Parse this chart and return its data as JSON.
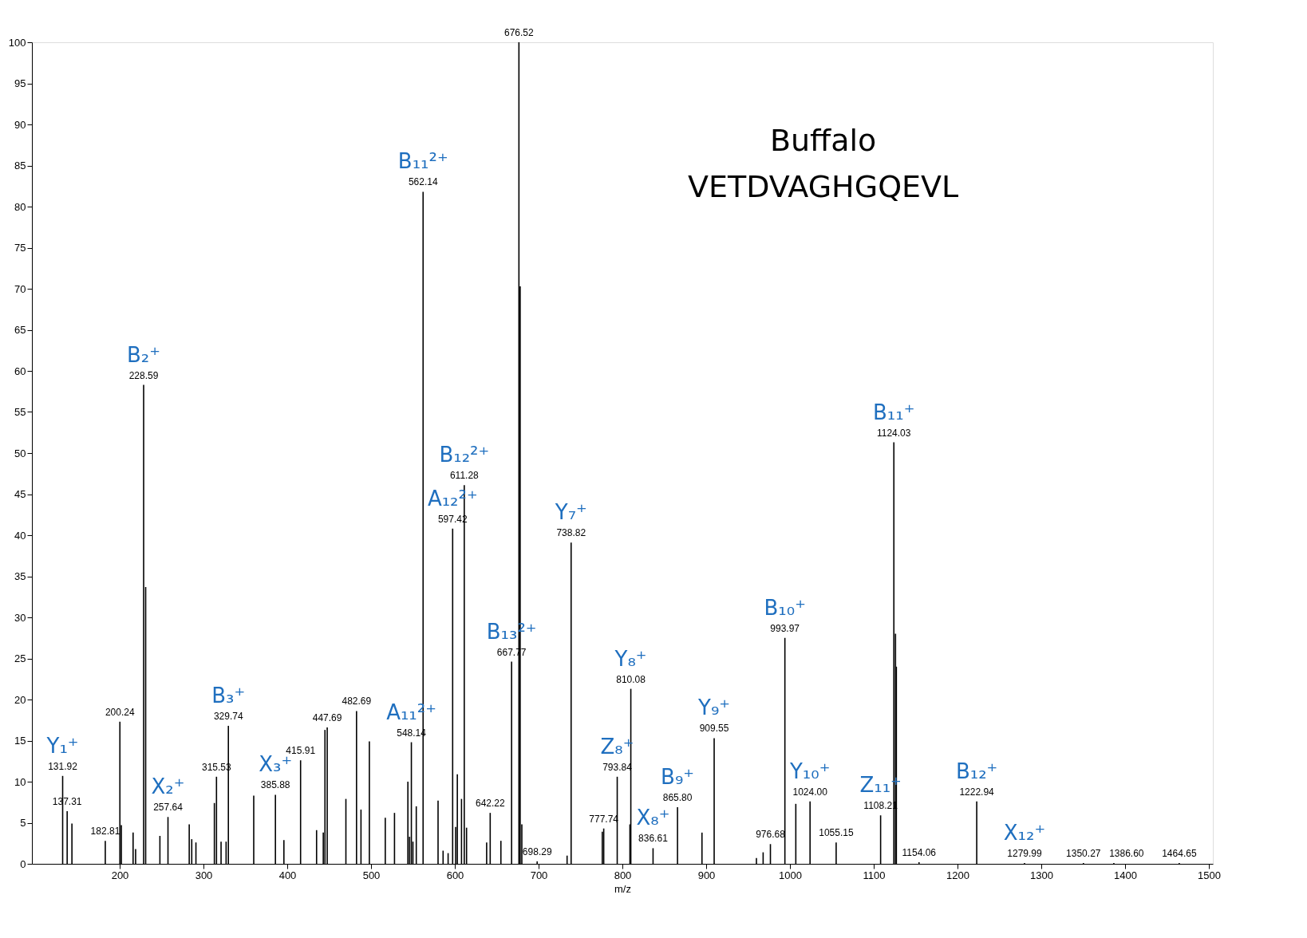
{
  "chart_data": {
    "type": "bar",
    "xlabel": "m/z",
    "x": [
      131.92,
      137.31,
      143,
      182.81,
      200.24,
      202,
      216,
      219,
      228.59,
      231,
      248,
      257.64,
      283,
      286,
      291,
      313,
      315.53,
      321,
      327,
      329.74,
      360,
      385.88,
      396,
      415.91,
      435,
      443,
      445,
      447.69,
      470,
      482.69,
      488,
      498,
      517,
      528,
      544,
      546,
      548.14,
      550,
      554,
      562.14,
      580,
      586,
      592,
      597.42,
      601,
      603,
      608,
      611.28,
      614,
      638,
      642.22,
      655,
      667.77,
      676.52,
      678,
      680,
      698.29,
      734,
      738.82,
      776,
      777.74,
      793.84,
      809,
      810.08,
      836.61,
      865.8,
      895,
      909.55,
      960,
      968,
      976.68,
      993.97,
      1007,
      1024.0,
      1055.15,
      1108.21,
      1124.03,
      1126,
      1127,
      1154.06,
      1222.94,
      1279.99,
      1350.27,
      1386.6,
      1464.65
    ],
    "values": [
      10.7,
      6.4,
      4.9,
      2.8,
      17.3,
      4.7,
      3.8,
      1.8,
      58.3,
      33.7,
      3.4,
      5.7,
      4.8,
      3.0,
      2.6,
      7.4,
      10.6,
      2.7,
      2.7,
      16.8,
      8.3,
      8.4,
      2.9,
      12.6,
      4.1,
      3.8,
      16.3,
      16.6,
      7.9,
      18.6,
      6.6,
      14.9,
      5.6,
      6.2,
      10.0,
      3.3,
      14.8,
      2.7,
      7.0,
      81.8,
      7.7,
      1.6,
      1.3,
      40.8,
      4.5,
      10.9,
      7.9,
      46.1,
      4.4,
      2.6,
      6.2,
      2.8,
      24.6,
      100,
      70.3,
      4.8,
      0.3,
      1.0,
      39.1,
      3.9,
      4.3,
      10.6,
      4.8,
      21.3,
      1.9,
      6.9,
      3.8,
      15.3,
      0.7,
      1.4,
      2.4,
      27.5,
      7.3,
      7.6,
      2.6,
      5.9,
      51.3,
      28,
      24,
      0.2,
      7.6,
      0.1,
      0.1,
      0.1,
      0.1
    ],
    "color": "#000000",
    "xlim": [
      100,
      1500
    ],
    "xticks": [
      200,
      300,
      400,
      500,
      600,
      700,
      800,
      900,
      1000,
      1100,
      1200,
      1300,
      1400,
      1500
    ],
    "ylim": [
      0,
      100
    ],
    "yticks": [
      0,
      5,
      10,
      15,
      20,
      25,
      30,
      35,
      40,
      45,
      50,
      55,
      60,
      65,
      70,
      75,
      80,
      85,
      90,
      95,
      100
    ],
    "grid": false,
    "annotations": [
      "Buffalo",
      "VETDVAGHGQEVL",
      {
        "text": "131.92",
        "x": 131.92,
        "y": 10.7
      },
      {
        "text": "Y₁⁺",
        "x": 131.92,
        "y": 10.7
      },
      {
        "text": "137.31",
        "x": 137.31,
        "y": 6.4
      },
      {
        "text": "182.81",
        "x": 182.81,
        "y": 2.8
      },
      {
        "text": "200.24",
        "x": 200.24,
        "y": 17.3
      },
      {
        "text": "228.59",
        "x": 228.59,
        "y": 58.3
      },
      {
        "text": "B₂⁺",
        "x": 228.59,
        "y": 58.3
      },
      {
        "text": "257.64",
        "x": 257.64,
        "y": 5.7
      },
      {
        "text": "X₂⁺",
        "x": 257.64,
        "y": 5.7
      },
      {
        "text": "315.53",
        "x": 315.53,
        "y": 10.6
      },
      {
        "text": "329.74",
        "x": 329.74,
        "y": 16.8
      },
      {
        "text": "B₃⁺",
        "x": 329.74,
        "y": 16.8
      },
      {
        "text": "385.88",
        "x": 385.88,
        "y": 8.4
      },
      {
        "text": "X₃⁺",
        "x": 385.88,
        "y": 8.4
      },
      {
        "text": "415.91",
        "x": 415.91,
        "y": 12.6
      },
      {
        "text": "447.69",
        "x": 447.69,
        "y": 16.6
      },
      {
        "text": "482.69",
        "x": 482.69,
        "y": 18.6
      },
      {
        "text": "548.14",
        "x": 548.14,
        "y": 14.8
      },
      {
        "text": "A₁₁²⁺",
        "x": 548.14,
        "y": 14.8
      },
      {
        "text": "562.14",
        "x": 562.14,
        "y": 81.8
      },
      {
        "text": "B₁₁²⁺",
        "x": 562.14,
        "y": 81.8
      },
      {
        "text": "597.42",
        "x": 597.42,
        "y": 40.8
      },
      {
        "text": "A₁₂²⁺",
        "x": 597.42,
        "y": 40.8
      },
      {
        "text": "611.28",
        "x": 611.28,
        "y": 46.1
      },
      {
        "text": "B₁₂²⁺",
        "x": 611.28,
        "y": 46.1
      },
      {
        "text": "642.22",
        "x": 642.22,
        "y": 6.2
      },
      {
        "text": "667.77",
        "x": 667.77,
        "y": 24.6
      },
      {
        "text": "B₁₃²⁺",
        "x": 667.77,
        "y": 24.6
      },
      {
        "text": "676.52",
        "x": 676.52,
        "y": 100
      },
      {
        "text": "698.29",
        "x": 698.29,
        "y": 0.3
      },
      {
        "text": "738.82",
        "x": 738.82,
        "y": 39.1
      },
      {
        "text": "Y₇⁺",
        "x": 738.82,
        "y": 39.1
      },
      {
        "text": "777.74",
        "x": 777.74,
        "y": 4.3
      },
      {
        "text": "793.84",
        "x": 793.84,
        "y": 10.6
      },
      {
        "text": "Z₈⁺",
        "x": 793.84,
        "y": 10.6
      },
      {
        "text": "810.08",
        "x": 810.08,
        "y": 21.3
      },
      {
        "text": "Y₈⁺",
        "x": 810.08,
        "y": 21.3
      },
      {
        "text": "836.61",
        "x": 836.61,
        "y": 1.9
      },
      {
        "text": "X₈⁺",
        "x": 836.61,
        "y": 1.9
      },
      {
        "text": "865.80",
        "x": 865.8,
        "y": 6.9
      },
      {
        "text": "B₉⁺",
        "x": 865.8,
        "y": 6.9
      },
      {
        "text": "909.55",
        "x": 909.55,
        "y": 15.3
      },
      {
        "text": "Y₉⁺",
        "x": 909.55,
        "y": 15.3
      },
      {
        "text": "976.68",
        "x": 976.68,
        "y": 2.4
      },
      {
        "text": "993.97",
        "x": 993.97,
        "y": 27.5
      },
      {
        "text": "B₁₀⁺",
        "x": 993.97,
        "y": 27.5
      },
      {
        "text": "1024.00",
        "x": 1024.0,
        "y": 7.6
      },
      {
        "text": "Y₁₀⁺",
        "x": 1024.0,
        "y": 7.6
      },
      {
        "text": "1055.15",
        "x": 1055.15,
        "y": 2.6
      },
      {
        "text": "1108.21",
        "x": 1108.21,
        "y": 5.9
      },
      {
        "text": "Z₁₁⁺",
        "x": 1108.21,
        "y": 5.9
      },
      {
        "text": "1124.03",
        "x": 1124.03,
        "y": 51.3
      },
      {
        "text": "B₁₁⁺",
        "x": 1124.03,
        "y": 51.3
      },
      {
        "text": "1154.06",
        "x": 1154.06,
        "y": 0.2
      },
      {
        "text": "1222.94",
        "x": 1222.94,
        "y": 7.6
      },
      {
        "text": "B₁₂⁺",
        "x": 1222.94,
        "y": 7.6
      },
      {
        "text": "1279.99",
        "x": 1279.99,
        "y": 0.1
      },
      {
        "text": "X₁₂⁺",
        "x": 1279.99,
        "y": 0.1
      },
      {
        "text": "1350.27",
        "x": 1350.27,
        "y": 0.1
      },
      {
        "text": "1386.60",
        "x": 1386.6,
        "y": 0.1
      },
      {
        "text": "1464.65",
        "x": 1464.65,
        "y": 0.1
      }
    ]
  }
}
